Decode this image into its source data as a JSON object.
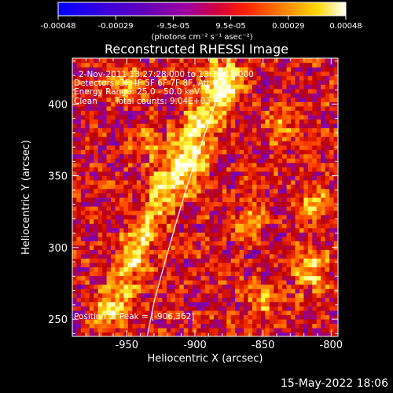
{
  "chart_data": {
    "type": "heatmap",
    "title": "Reconstructed RHESSI Image",
    "xlabel": "Heliocentric X (arcsec)",
    "ylabel": "Heliocentric Y (arcsec)",
    "xlim": [
      -990,
      -795
    ],
    "ylim": [
      238,
      432
    ],
    "xticks": [
      -950,
      -900,
      -850,
      -800
    ],
    "yticks": [
      250,
      300,
      350,
      400
    ],
    "colorbar": {
      "unit": "(photons cm⁻² s⁻¹ asec⁻²)",
      "range": [
        -0.00048,
        0.00048
      ],
      "ticks": [
        "-0.00048",
        "-0.00029",
        "-9.5e-05",
        "9.5e-05",
        "0.00029",
        "0.00048"
      ],
      "colormap": [
        "#0000ff",
        "#5a00b4",
        "#8f00a8",
        "#c00000",
        "#ff4000",
        "#ffa000",
        "#ffff40",
        "#ffffff"
      ]
    },
    "annotations": {
      "time_range": "2-Nov-2011 13:27:28.000 to 13:33:12.000",
      "detectors": "Detectors: 3F 4F 5F 6F 7F 8F, Att 0",
      "energy_range": "Energy Range: 25.0 - 50.0 keV",
      "clean": "Clean",
      "total_counts": "Total counts: 9.04E+03",
      "peak": "Position of Peak = [-906,362]"
    },
    "limb_curve": [
      [
        -935,
        238
      ],
      [
        -930,
        262
      ],
      [
        -922,
        290
      ],
      [
        -913,
        320
      ],
      [
        -905,
        345
      ],
      [
        -896,
        370
      ],
      [
        -887,
        395
      ],
      [
        -880,
        415
      ],
      [
        -875,
        432
      ]
    ],
    "emission_ridge": [
      [
        -965,
        255
      ],
      [
        -950,
        285
      ],
      [
        -940,
        305
      ],
      [
        -930,
        325
      ],
      [
        -918,
        345
      ],
      [
        -906,
        362
      ],
      [
        -898,
        382
      ],
      [
        -890,
        400
      ],
      [
        -884,
        418
      ]
    ],
    "secondary_sources": [
      {
        "x": -815,
        "y": 285,
        "peak": 0.00036
      },
      {
        "x": -812,
        "y": 330,
        "peak": 0.0003
      },
      {
        "x": -860,
        "y": 318,
        "peak": 0.00026
      },
      {
        "x": -875,
        "y": 415,
        "peak": 0.00034
      },
      {
        "x": -950,
        "y": 415,
        "peak": 0.0003
      },
      {
        "x": -848,
        "y": 260,
        "peak": 0.00022
      },
      {
        "x": -835,
        "y": 385,
        "peak": 0.00024
      },
      {
        "x": -935,
        "y": 375,
        "peak": 0.0002
      }
    ]
  },
  "footer": {
    "date": "15-May-2022 18:06"
  }
}
